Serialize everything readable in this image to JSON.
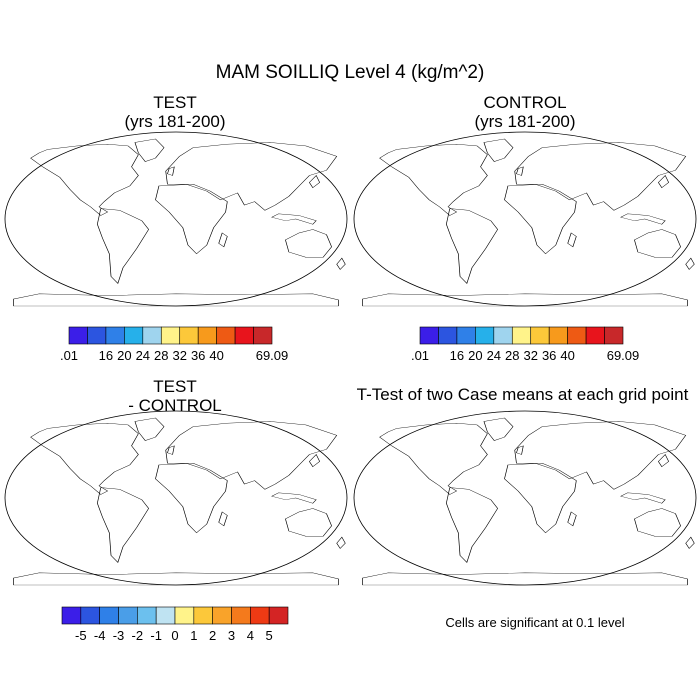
{
  "figure": {
    "title": "MAM SOILLIQ Level 4 (kg/m^2)"
  },
  "panels": {
    "test": {
      "title": "TEST",
      "subtitle": "(yrs 181-200)"
    },
    "control": {
      "title": "CONTROL",
      "subtitle": "(yrs 181-200)"
    },
    "diff": {
      "title": "TEST",
      "subtitle": "- CONTROL"
    },
    "ttest": {
      "title": "T-Test of two Case means at each grid point",
      "note": "Cells are significant at 0.1 level"
    }
  },
  "colorbars": {
    "abs": {
      "colors": [
        "#3b1ee8",
        "#2c55e0",
        "#2f80e8",
        "#26b0ea",
        "#9fd4ee",
        "#fff38a",
        "#fcc83a",
        "#f79a1c",
        "#ee5a14",
        "#e8141c",
        "#c8282a"
      ],
      "labels": [
        ".01",
        "16",
        "20",
        "24",
        "28",
        "32",
        "36",
        "40",
        "69.09"
      ],
      "label_slots": [
        0,
        2,
        3,
        4,
        5,
        6,
        7,
        8,
        11
      ]
    },
    "diff": {
      "colors": [
        "#3b1ee8",
        "#2c55e0",
        "#2f80e8",
        "#4a9ee8",
        "#6cc0ee",
        "#bfe3f2",
        "#fff38a",
        "#fcc83a",
        "#f9a32a",
        "#f47a1c",
        "#ee3a14",
        "#d42424"
      ],
      "labels": [
        "-5",
        "-4",
        "-3",
        "-2",
        "-1",
        "0",
        "1",
        "2",
        "3",
        "4",
        "5"
      ],
      "label_slots": [
        1,
        2,
        3,
        4,
        5,
        6,
        7,
        8,
        9,
        10,
        11
      ]
    }
  },
  "colors": {
    "ocean": "#ffffff",
    "coast": "#000000",
    "diff_main": "#fff2a8",
    "diff_alt": "#bfe3f2"
  }
}
